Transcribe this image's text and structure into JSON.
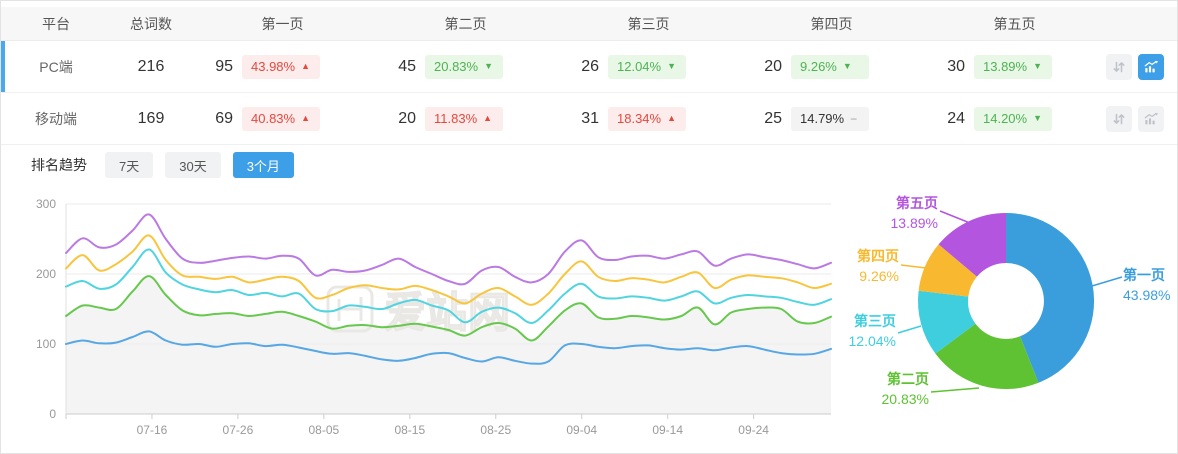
{
  "table": {
    "headers": [
      "平台",
      "总词数",
      "第一页",
      "第二页",
      "第三页",
      "第四页",
      "第五页"
    ],
    "rows": [
      {
        "platform": "PC端",
        "selected": true,
        "total": "216",
        "pages": [
          {
            "count": "95",
            "pct": "43.98%",
            "dir": "up"
          },
          {
            "count": "45",
            "pct": "20.83%",
            "dir": "down"
          },
          {
            "count": "26",
            "pct": "12.04%",
            "dir": "down"
          },
          {
            "count": "20",
            "pct": "9.26%",
            "dir": "down"
          },
          {
            "count": "30",
            "pct": "13.89%",
            "dir": "down"
          }
        ],
        "chart_active": true
      },
      {
        "platform": "移动端",
        "selected": false,
        "total": "169",
        "pages": [
          {
            "count": "69",
            "pct": "40.83%",
            "dir": "up"
          },
          {
            "count": "20",
            "pct": "11.83%",
            "dir": "up"
          },
          {
            "count": "31",
            "pct": "18.34%",
            "dir": "up"
          },
          {
            "count": "25",
            "pct": "14.79%",
            "dir": "flat"
          },
          {
            "count": "24",
            "pct": "14.20%",
            "dir": "down"
          }
        ],
        "chart_active": false
      }
    ],
    "icons": {
      "row_actions": [
        "sort-arrows-icon",
        "trend-chart-icon"
      ]
    }
  },
  "trend": {
    "label": "排名趋势",
    "tabs": [
      {
        "label": "7天",
        "active": false
      },
      {
        "label": "30天",
        "active": false
      },
      {
        "label": "3个月",
        "active": true
      }
    ]
  },
  "watermark": "爱站网",
  "colors": {
    "accent_blue": "#3d9fe8",
    "row_indicator": "#4aa9ec",
    "badge_up_text": "#e5493e",
    "badge_up_bg": "#fdecec",
    "badge_down_text": "#4fb254",
    "badge_down_bg": "#e9f7e7",
    "badge_flat_bg": "#f3f3f3"
  },
  "chart_data": [
    {
      "type": "line",
      "title": "排名趋势",
      "ylim": [
        0,
        300
      ],
      "yticks": [
        0,
        100,
        200,
        300
      ],
      "grid": true,
      "legend": "none",
      "x_tick_labels": [
        "07-16",
        "07-26",
        "08-05",
        "08-15",
        "08-25",
        "09-04",
        "09-14",
        "09-24"
      ],
      "x_tick_days": [
        10,
        20,
        30,
        40,
        50,
        60,
        70,
        80
      ],
      "total_days": 89,
      "area_fill_color": "rgba(0,0,0,0.04)",
      "series": [
        {
          "name": "第一页",
          "color": "#56a7e3",
          "area_fill": false,
          "values": [
            100,
            105,
            101,
            102,
            110,
            118,
            105,
            99,
            100,
            96,
            100,
            101,
            97,
            99,
            95,
            90,
            86,
            87,
            83,
            78,
            76,
            80,
            86,
            87,
            80,
            75,
            81,
            76,
            72,
            75,
            98,
            100,
            96,
            94,
            97,
            98,
            94,
            92,
            94,
            91,
            95,
            97,
            92,
            87,
            85,
            86,
            93
          ]
        },
        {
          "name": "第二页",
          "color": "#67c84e",
          "area_fill": true,
          "values": [
            140,
            155,
            152,
            150,
            175,
            197,
            170,
            148,
            141,
            143,
            144,
            140,
            143,
            146,
            140,
            132,
            122,
            126,
            127,
            124,
            126,
            129,
            125,
            120,
            112,
            124,
            130,
            122,
            105,
            125,
            148,
            158,
            138,
            136,
            140,
            138,
            135,
            140,
            152,
            128,
            145,
            150,
            152,
            150,
            132,
            130,
            139
          ]
        },
        {
          "name": "第三页",
          "color": "#50d4e0",
          "area_fill": false,
          "values": [
            182,
            190,
            179,
            185,
            210,
            235,
            202,
            185,
            178,
            174,
            177,
            170,
            173,
            168,
            172,
            150,
            147,
            155,
            153,
            150,
            158,
            163,
            155,
            148,
            131,
            146,
            152,
            144,
            130,
            148,
            172,
            186,
            168,
            165,
            168,
            166,
            162,
            168,
            175,
            158,
            166,
            170,
            168,
            166,
            160,
            156,
            164
          ]
        },
        {
          "name": "第四页",
          "color": "#f8c53e",
          "area_fill": false,
          "values": [
            208,
            227,
            205,
            214,
            232,
            255,
            220,
            198,
            196,
            193,
            196,
            188,
            192,
            196,
            190,
            166,
            170,
            180,
            184,
            180,
            178,
            183,
            177,
            168,
            158,
            172,
            180,
            168,
            156,
            172,
            200,
            218,
            196,
            190,
            194,
            192,
            188,
            196,
            202,
            180,
            192,
            198,
            196,
            194,
            188,
            180,
            186
          ]
        },
        {
          "name": "第五页",
          "color": "#ba79e3",
          "area_fill": false,
          "values": [
            230,
            251,
            238,
            242,
            262,
            285,
            250,
            222,
            216,
            219,
            223,
            225,
            222,
            226,
            222,
            198,
            206,
            203,
            205,
            213,
            222,
            210,
            200,
            190,
            186,
            205,
            210,
            196,
            188,
            200,
            232,
            248,
            224,
            220,
            225,
            226,
            222,
            228,
            232,
            212,
            222,
            228,
            224,
            220,
            214,
            208,
            216
          ]
        }
      ]
    },
    {
      "type": "pie",
      "labels": [
        "第一页",
        "第二页",
        "第三页",
        "第四页",
        "第五页"
      ],
      "values": [
        43.98,
        20.83,
        12.04,
        9.26,
        13.89
      ],
      "pct_labels": [
        "43.98%",
        "20.83%",
        "12.04%",
        "9.26%",
        "13.89%"
      ],
      "colors": [
        "#3b9edc",
        "#5ec233",
        "#3ecede",
        "#f8b930",
        "#b355de"
      ],
      "unit": "%",
      "inner_radius_ratio": 0.43,
      "start_angle": "top",
      "direction": "clockwise",
      "legend": "none"
    }
  ]
}
